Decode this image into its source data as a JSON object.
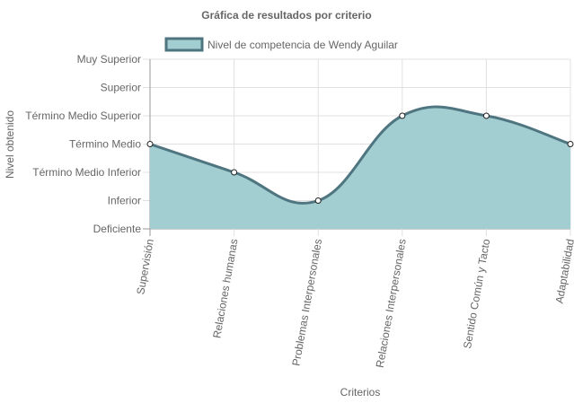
{
  "chart_data": {
    "type": "line",
    "title": "Gráfica de resultados por criterio",
    "xlabel": "Criterios",
    "ylabel": "Nivel obtenido",
    "categories": [
      "Supervisión",
      "Relaciones humanas",
      "Problemas Interpersonales",
      "Relaciones Interpersonales",
      "Sentido Común y Tacto",
      "Adaptabilidad"
    ],
    "y_levels": [
      "Deficiente",
      "Inferior",
      "Término Medio Inferior",
      "Término Medio",
      "Término Medio Superior",
      "Superior",
      "Muy Superior"
    ],
    "series": [
      {
        "name": "Nivel de competencia de Wendy Aguilar",
        "values": [
          3,
          2,
          1,
          4,
          4,
          3
        ]
      }
    ],
    "ylim": [
      0,
      6
    ],
    "fill": "area",
    "smooth": true,
    "grid": true,
    "legend_position": "top",
    "colors": {
      "line": "#4e7580",
      "fill": "#a2cdd1",
      "grid": "#e0e0e0",
      "axis": "#999999",
      "text": "#666666"
    }
  }
}
